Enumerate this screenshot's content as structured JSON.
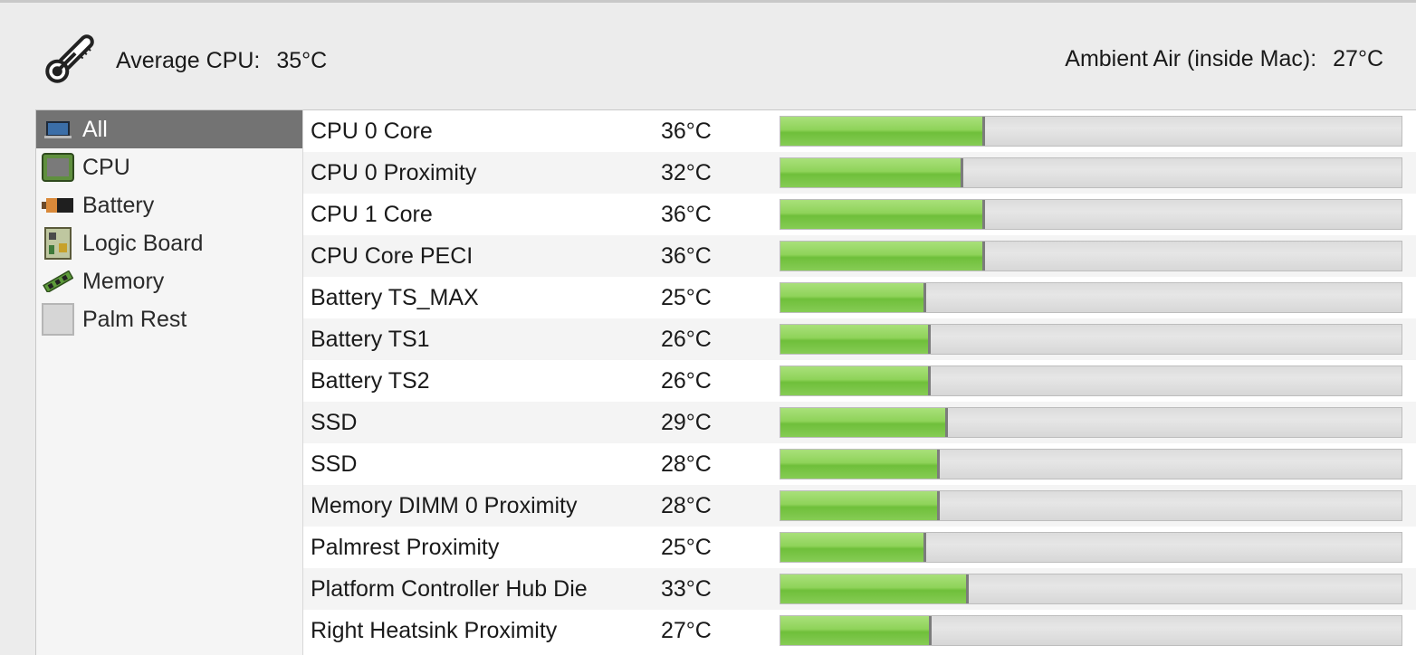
{
  "header": {
    "avg_label": "Average CPU:",
    "avg_value": "35°C",
    "ambient_label": "Ambient Air (inside Mac):",
    "ambient_value": "27°C",
    "icon": "thermometer-icon"
  },
  "sidebar": {
    "items": [
      {
        "label": "All",
        "icon": "laptop-icon",
        "selected": true
      },
      {
        "label": "CPU",
        "icon": "cpu-chip-icon",
        "selected": false
      },
      {
        "label": "Battery",
        "icon": "battery-icon",
        "selected": false
      },
      {
        "label": "Logic Board",
        "icon": "logic-board-icon",
        "selected": false
      },
      {
        "label": "Memory",
        "icon": "memory-stick-icon",
        "selected": false
      },
      {
        "label": "Palm Rest",
        "icon": "palm-rest-icon",
        "selected": false
      }
    ]
  },
  "sensors": [
    {
      "name": "CPU 0 Core",
      "temp": "36°C",
      "level": 0.33
    },
    {
      "name": "CPU 0 Proximity",
      "temp": "32°C",
      "level": 0.295
    },
    {
      "name": "CPU 1 Core",
      "temp": "36°C",
      "level": 0.33
    },
    {
      "name": "CPU Core PECI",
      "temp": "36°C",
      "level": 0.33
    },
    {
      "name": "Battery TS_MAX",
      "temp": "25°C",
      "level": 0.235
    },
    {
      "name": "Battery TS1",
      "temp": "26°C",
      "level": 0.242
    },
    {
      "name": "Battery TS2",
      "temp": "26°C",
      "level": 0.242
    },
    {
      "name": "SSD",
      "temp": "29°C",
      "level": 0.27
    },
    {
      "name": "SSD",
      "temp": "28°C",
      "level": 0.256
    },
    {
      "name": "Memory DIMM 0 Proximity",
      "temp": "28°C",
      "level": 0.256
    },
    {
      "name": "Palmrest Proximity",
      "temp": "25°C",
      "level": 0.235
    },
    {
      "name": "Platform Controller Hub Die",
      "temp": "33°C",
      "level": 0.303
    },
    {
      "name": "Right Heatsink Proximity",
      "temp": "27°C",
      "level": 0.244
    }
  ],
  "colors": {
    "bar_green": "#8fd35a",
    "selected_bg": "#737373"
  }
}
